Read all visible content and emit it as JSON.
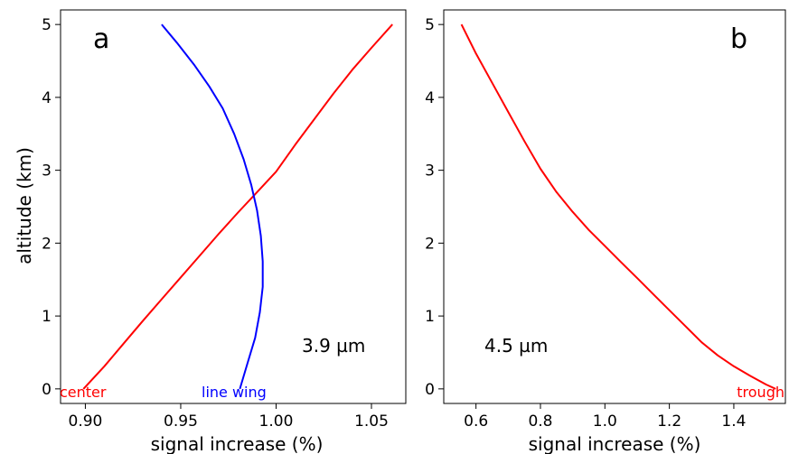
{
  "figure": {
    "ylabel": "altitude (km)"
  },
  "chart_data": [
    {
      "type": "line",
      "panel_label": "a",
      "xlabel": "signal increase (%)",
      "ylabel": "altitude (km)",
      "xlim": [
        0.887,
        1.068
      ],
      "ylim": [
        -0.2,
        5.2
      ],
      "xticks": [
        0.9,
        0.95,
        1.0,
        1.05
      ],
      "xtick_labels": [
        "0.90",
        "0.95",
        "1.00",
        "1.05"
      ],
      "yticks": [
        0,
        1,
        2,
        3,
        4,
        5
      ],
      "ytick_labels": [
        "0",
        "1",
        "2",
        "3",
        "4",
        "5"
      ],
      "annotation": "3.9 µm",
      "grid": false,
      "series": [
        {
          "name": "center",
          "color": "#ff0000",
          "x": [
            0.899,
            0.91,
            0.92,
            0.93,
            0.94,
            0.95,
            0.96,
            0.97,
            0.98,
            0.99,
            1.0,
            1.01,
            1.02,
            1.03,
            1.04,
            1.05,
            1.061
          ],
          "y": [
            0.0,
            0.31,
            0.62,
            0.93,
            1.23,
            1.53,
            1.83,
            2.13,
            2.42,
            2.7,
            2.98,
            3.35,
            3.7,
            4.05,
            4.38,
            4.68,
            5.0
          ]
        },
        {
          "name": "line wing",
          "color": "#0000ff",
          "x": [
            0.981,
            0.985,
            0.989,
            0.9915,
            0.993,
            0.993,
            0.992,
            0.99,
            0.987,
            0.983,
            0.978,
            0.972,
            0.965,
            0.957,
            0.948,
            0.94
          ],
          "y": [
            0.0,
            0.35,
            0.7,
            1.05,
            1.4,
            1.75,
            2.1,
            2.45,
            2.8,
            3.15,
            3.5,
            3.85,
            4.15,
            4.45,
            4.75,
            5.0
          ]
        }
      ]
    },
    {
      "type": "line",
      "panel_label": "b",
      "xlabel": "signal increase (%)",
      "ylabel": "",
      "xlim": [
        0.5,
        1.56
      ],
      "ylim": [
        -0.2,
        5.2
      ],
      "xticks": [
        0.6,
        0.8,
        1.0,
        1.2,
        1.4
      ],
      "xtick_labels": [
        "0.6",
        "0.8",
        "1.0",
        "1.2",
        "1.4"
      ],
      "yticks": [
        0,
        1,
        2,
        3,
        4,
        5
      ],
      "ytick_labels": [
        "0",
        "1",
        "2",
        "3",
        "4",
        "5"
      ],
      "annotation": "4.5 µm",
      "grid": false,
      "series": [
        {
          "name": "trough",
          "color": "#ff0000",
          "x": [
            0.555,
            0.6,
            0.65,
            0.7,
            0.75,
            0.8,
            0.85,
            0.9,
            0.95,
            1.0,
            1.05,
            1.1,
            1.15,
            1.2,
            1.25,
            1.3,
            1.35,
            1.4,
            1.45,
            1.5,
            1.53
          ],
          "y": [
            5.0,
            4.6,
            4.2,
            3.8,
            3.4,
            3.02,
            2.7,
            2.43,
            2.18,
            1.96,
            1.74,
            1.52,
            1.3,
            1.08,
            0.86,
            0.64,
            0.46,
            0.31,
            0.18,
            0.06,
            0.0
          ]
        }
      ]
    }
  ]
}
